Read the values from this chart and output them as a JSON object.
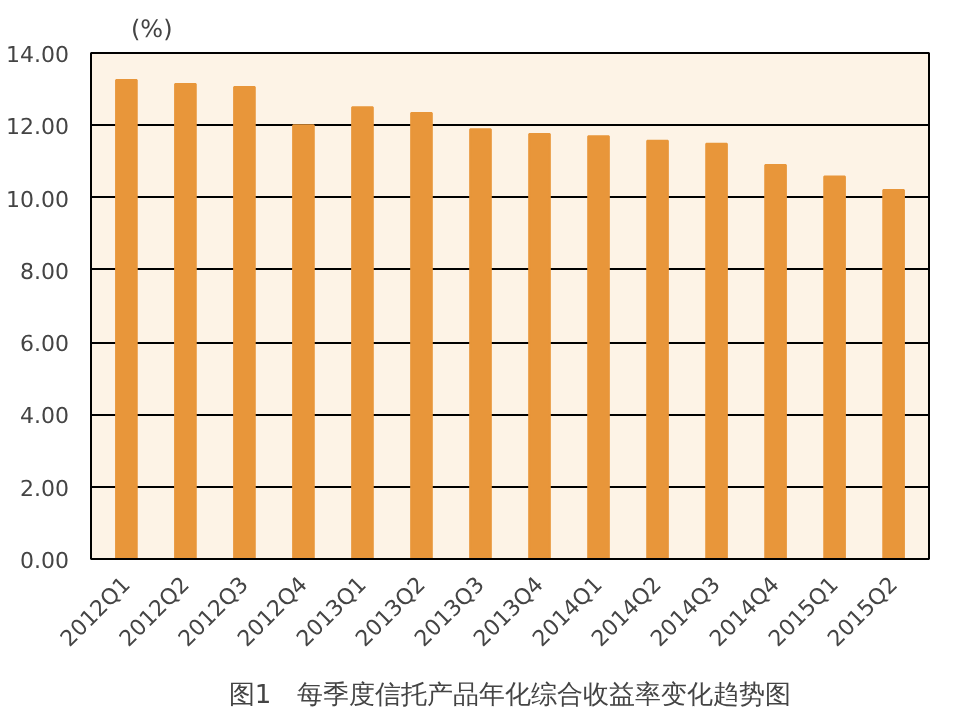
{
  "chart_data": {
    "type": "bar",
    "title": "图1　每季度信托产品年化综合收益率变化趋势图",
    "ylabel": "(%)",
    "categories": [
      "2012Q1",
      "2012Q2",
      "2012Q3",
      "2012Q4",
      "2013Q1",
      "2013Q2",
      "2013Q3",
      "2013Q4",
      "2014Q1",
      "2014Q2",
      "2014Q3",
      "2014Q4",
      "2015Q1",
      "2015Q2"
    ],
    "values": [
      13.25,
      13.14,
      13.06,
      12.0,
      12.5,
      12.34,
      11.89,
      11.76,
      11.7,
      11.57,
      11.49,
      10.9,
      10.58,
      10.21
    ],
    "color": "#e8963a",
    "ylim": [
      0,
      14
    ],
    "yticks": [
      {
        "value": 0,
        "label": "0.00"
      },
      {
        "value": 2,
        "label": "2.00"
      },
      {
        "value": 4,
        "label": "4.00"
      },
      {
        "value": 6,
        "label": "6.00"
      },
      {
        "value": 8,
        "label": "8.00"
      },
      {
        "value": 10,
        "label": "10.00"
      },
      {
        "value": 12,
        "label": "12.00"
      },
      {
        "value": 14,
        "label": "14.00"
      }
    ],
    "grid": "y"
  }
}
